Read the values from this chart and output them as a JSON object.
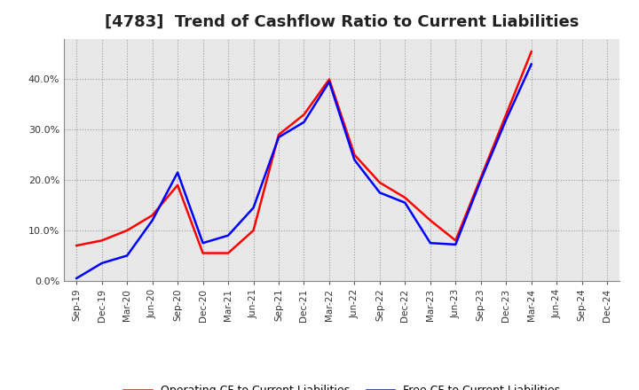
{
  "title": "[4783]  Trend of Cashflow Ratio to Current Liabilities",
  "title_fontsize": 13,
  "x_labels": [
    "Sep-19",
    "Dec-19",
    "Mar-20",
    "Jun-20",
    "Sep-20",
    "Dec-20",
    "Mar-21",
    "Jun-21",
    "Sep-21",
    "Dec-21",
    "Mar-22",
    "Jun-22",
    "Sep-22",
    "Dec-22",
    "Mar-23",
    "Jun-23",
    "Sep-23",
    "Dec-23",
    "Mar-24",
    "Jun-24",
    "Sep-24",
    "Dec-24"
  ],
  "operating_cf": [
    0.07,
    0.08,
    0.1,
    0.13,
    0.19,
    0.055,
    0.055,
    0.1,
    0.29,
    0.33,
    0.4,
    0.25,
    0.195,
    0.165,
    0.12,
    0.08,
    0.205,
    0.33,
    0.455,
    null,
    null,
    null
  ],
  "free_cf": [
    0.005,
    0.035,
    0.05,
    0.12,
    0.215,
    0.075,
    0.09,
    0.145,
    0.285,
    0.315,
    0.395,
    0.24,
    0.175,
    0.155,
    0.075,
    0.072,
    0.2,
    0.32,
    0.43,
    null,
    null,
    null
  ],
  "operating_color": "#ff0000",
  "free_color": "#0000ff",
  "background_color": "#ffffff",
  "plot_bg_color": "#e8e8e8",
  "grid_color": "#999999",
  "ylim": [
    0,
    0.48
  ],
  "yticks": [
    0.0,
    0.1,
    0.2,
    0.3,
    0.4
  ],
  "legend_labels": [
    "Operating CF to Current Liabilities",
    "Free CF to Current Liabilities"
  ]
}
